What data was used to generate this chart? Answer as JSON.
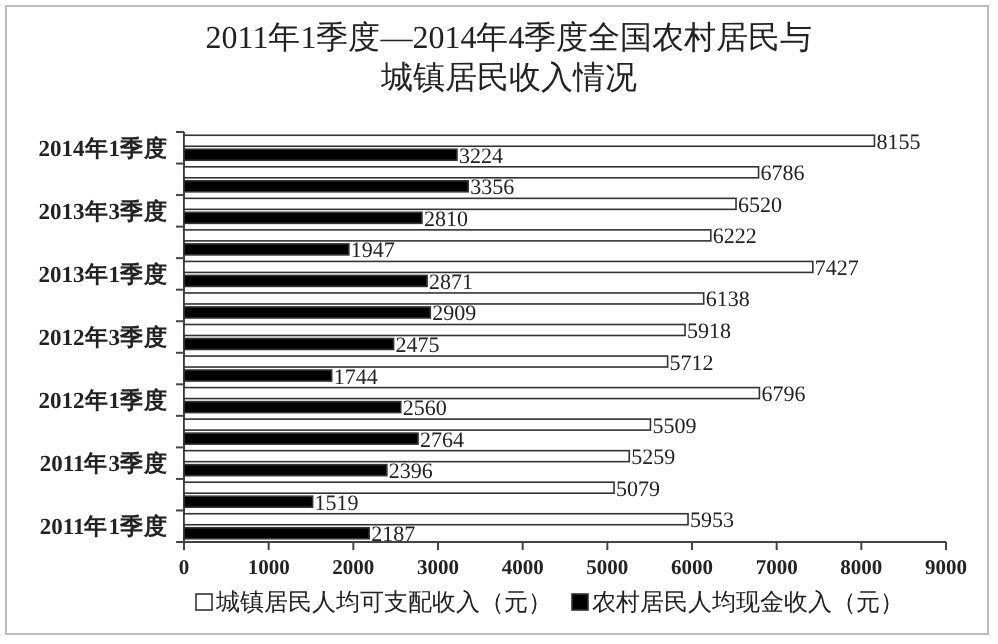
{
  "chart_data": {
    "type": "bar",
    "orientation": "horizontal",
    "title": "2011年1季度—2014年4季度全国农村居民与城镇居民收入情况",
    "categories": [
      "2014年1季度",
      null,
      "2013年3季度",
      null,
      "2013年1季度",
      null,
      "2012年3季度",
      null,
      "2012年1季度",
      null,
      "2011年3季度",
      null,
      "2011年1季度"
    ],
    "series": [
      {
        "name": "城镇居民人均可支配收入（元）",
        "color": "#ffffff",
        "values": [
          8155,
          6786,
          6520,
          6222,
          7427,
          6138,
          5918,
          5712,
          6796,
          5509,
          5259,
          5079,
          5953
        ]
      },
      {
        "name": "农村居民人均现金收入（元）",
        "color": "#000000",
        "values": [
          3224,
          3356,
          2810,
          1947,
          2871,
          2909,
          2475,
          1744,
          2560,
          2764,
          2396,
          1519,
          2187
        ]
      }
    ],
    "xlim": [
      0,
      9000
    ],
    "xticks": [
      0,
      1000,
      2000,
      3000,
      4000,
      5000,
      6000,
      7000,
      8000,
      9000
    ],
    "data_labels": true,
    "legend": "bottom",
    "grid": false
  }
}
